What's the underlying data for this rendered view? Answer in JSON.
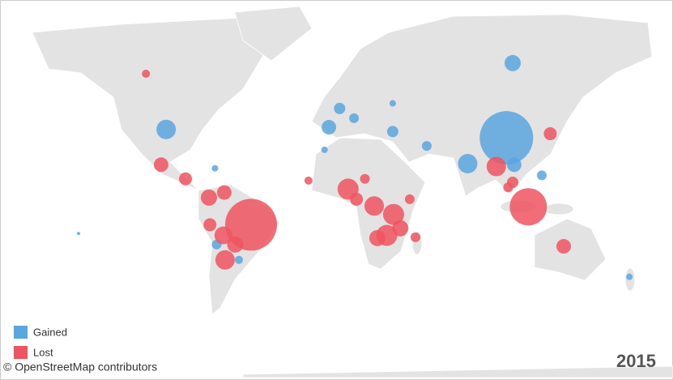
{
  "chart_data": {
    "type": "bubble-map",
    "series": [
      {
        "name": "Gained",
        "color": "#5aa6df",
        "lon": [
          104,
          -98,
          107.7,
          81,
          108.6,
          36.5,
          -1.4,
          5,
          13.5,
          56.7,
          -68,
          -54.8,
          125,
          177,
          -69,
          -4,
          36.5,
          -150
        ],
        "lat": [
          35,
          39,
          63,
          21.6,
          21,
          38,
          40,
          48,
          44,
          31,
          -25,
          -33,
          15,
          -41,
          19,
          29,
          50,
          -19
        ],
        "size": [
          1089,
          144,
          100,
          144,
          81,
          49,
          81,
          49,
          36,
          36,
          36,
          25,
          36,
          16,
          16,
          16,
          16,
          4
        ]
      },
      {
        "name": "Lost",
        "color": "#ee5560",
        "lon": [
          -47.6,
          117,
          -63,
          -57,
          -64,
          -72,
          -72.6,
          -63.5,
          -101,
          -86.5,
          98,
          107.7,
          10,
          15,
          25.5,
          37,
          33,
          27.4,
          41,
          50,
          138,
          130,
          -110,
          20,
          46.6,
          -13.5,
          105
        ],
        "lat": [
          -14,
          -3.5,
          -33,
          -25,
          -20,
          -14,
          2,
          5,
          21,
          13,
          20,
          11,
          7,
          1,
          -3,
          -8,
          -20,
          -21.5,
          -16,
          -21,
          -26,
          37,
          60,
          13,
          1,
          12,
          8
        ],
        "size": [
          1024,
          529,
          144,
          100,
          121,
          64,
          100,
          81,
          81,
          64,
          144,
          49,
          169,
          64,
          144,
          169,
          169,
          100,
          100,
          36,
          81,
          64,
          25,
          36,
          36,
          25,
          36
        ]
      }
    ],
    "attribution": "© OpenStreetMap contributors",
    "year": "2015"
  }
}
